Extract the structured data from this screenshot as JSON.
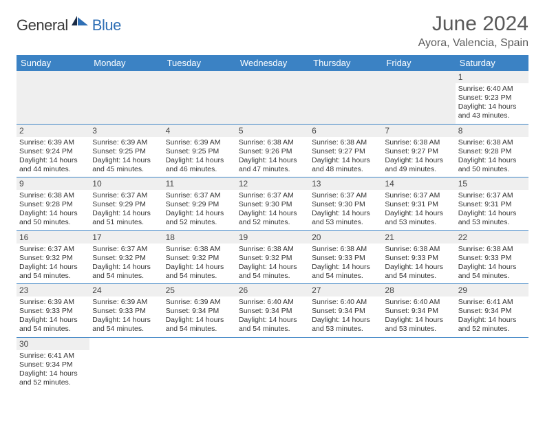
{
  "logo": {
    "text_dark": "General",
    "text_blue": "Blue",
    "dark_color": "#3a3a3a",
    "blue_color": "#2f6fb5"
  },
  "title": "June 2024",
  "location": "Ayora, Valencia, Spain",
  "header_bg": "#3b82c4",
  "header_fg": "#ffffff",
  "border_color": "#3b82c4",
  "gray_bg": "#efefef",
  "text_color": "#333333",
  "day_headers": [
    "Sunday",
    "Monday",
    "Tuesday",
    "Wednesday",
    "Thursday",
    "Friday",
    "Saturday"
  ],
  "label_sunrise": "Sunrise:",
  "label_sunset": "Sunset:",
  "label_daylight": "Daylight:",
  "weeks": [
    [
      null,
      null,
      null,
      null,
      null,
      null,
      {
        "d": "1",
        "sr": "6:40 AM",
        "ss": "9:23 PM",
        "dl": "14 hours and 43 minutes."
      }
    ],
    [
      {
        "d": "2",
        "sr": "6:39 AM",
        "ss": "9:24 PM",
        "dl": "14 hours and 44 minutes."
      },
      {
        "d": "3",
        "sr": "6:39 AM",
        "ss": "9:25 PM",
        "dl": "14 hours and 45 minutes."
      },
      {
        "d": "4",
        "sr": "6:39 AM",
        "ss": "9:25 PM",
        "dl": "14 hours and 46 minutes."
      },
      {
        "d": "5",
        "sr": "6:38 AM",
        "ss": "9:26 PM",
        "dl": "14 hours and 47 minutes."
      },
      {
        "d": "6",
        "sr": "6:38 AM",
        "ss": "9:27 PM",
        "dl": "14 hours and 48 minutes."
      },
      {
        "d": "7",
        "sr": "6:38 AM",
        "ss": "9:27 PM",
        "dl": "14 hours and 49 minutes."
      },
      {
        "d": "8",
        "sr": "6:38 AM",
        "ss": "9:28 PM",
        "dl": "14 hours and 50 minutes."
      }
    ],
    [
      {
        "d": "9",
        "sr": "6:38 AM",
        "ss": "9:28 PM",
        "dl": "14 hours and 50 minutes."
      },
      {
        "d": "10",
        "sr": "6:37 AM",
        "ss": "9:29 PM",
        "dl": "14 hours and 51 minutes."
      },
      {
        "d": "11",
        "sr": "6:37 AM",
        "ss": "9:29 PM",
        "dl": "14 hours and 52 minutes."
      },
      {
        "d": "12",
        "sr": "6:37 AM",
        "ss": "9:30 PM",
        "dl": "14 hours and 52 minutes."
      },
      {
        "d": "13",
        "sr": "6:37 AM",
        "ss": "9:30 PM",
        "dl": "14 hours and 53 minutes."
      },
      {
        "d": "14",
        "sr": "6:37 AM",
        "ss": "9:31 PM",
        "dl": "14 hours and 53 minutes."
      },
      {
        "d": "15",
        "sr": "6:37 AM",
        "ss": "9:31 PM",
        "dl": "14 hours and 53 minutes."
      }
    ],
    [
      {
        "d": "16",
        "sr": "6:37 AM",
        "ss": "9:32 PM",
        "dl": "14 hours and 54 minutes."
      },
      {
        "d": "17",
        "sr": "6:37 AM",
        "ss": "9:32 PM",
        "dl": "14 hours and 54 minutes."
      },
      {
        "d": "18",
        "sr": "6:38 AM",
        "ss": "9:32 PM",
        "dl": "14 hours and 54 minutes."
      },
      {
        "d": "19",
        "sr": "6:38 AM",
        "ss": "9:32 PM",
        "dl": "14 hours and 54 minutes."
      },
      {
        "d": "20",
        "sr": "6:38 AM",
        "ss": "9:33 PM",
        "dl": "14 hours and 54 minutes."
      },
      {
        "d": "21",
        "sr": "6:38 AM",
        "ss": "9:33 PM",
        "dl": "14 hours and 54 minutes."
      },
      {
        "d": "22",
        "sr": "6:38 AM",
        "ss": "9:33 PM",
        "dl": "14 hours and 54 minutes."
      }
    ],
    [
      {
        "d": "23",
        "sr": "6:39 AM",
        "ss": "9:33 PM",
        "dl": "14 hours and 54 minutes."
      },
      {
        "d": "24",
        "sr": "6:39 AM",
        "ss": "9:33 PM",
        "dl": "14 hours and 54 minutes."
      },
      {
        "d": "25",
        "sr": "6:39 AM",
        "ss": "9:34 PM",
        "dl": "14 hours and 54 minutes."
      },
      {
        "d": "26",
        "sr": "6:40 AM",
        "ss": "9:34 PM",
        "dl": "14 hours and 54 minutes."
      },
      {
        "d": "27",
        "sr": "6:40 AM",
        "ss": "9:34 PM",
        "dl": "14 hours and 53 minutes."
      },
      {
        "d": "28",
        "sr": "6:40 AM",
        "ss": "9:34 PM",
        "dl": "14 hours and 53 minutes."
      },
      {
        "d": "29",
        "sr": "6:41 AM",
        "ss": "9:34 PM",
        "dl": "14 hours and 52 minutes."
      }
    ],
    [
      {
        "d": "30",
        "sr": "6:41 AM",
        "ss": "9:34 PM",
        "dl": "14 hours and 52 minutes."
      },
      null,
      null,
      null,
      null,
      null,
      null
    ]
  ]
}
